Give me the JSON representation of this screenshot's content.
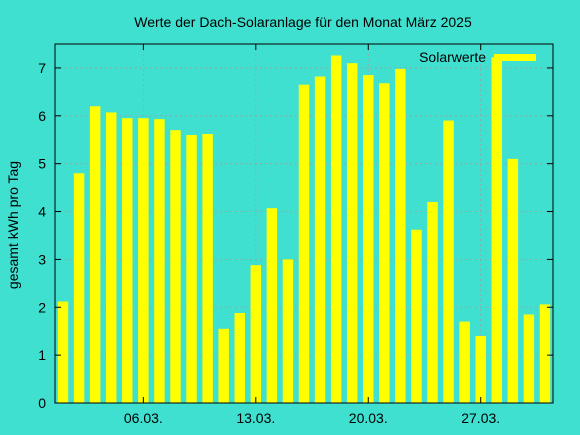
{
  "chart_data": {
    "type": "bar",
    "title": "Werte der Dach-Solaranlage für den Monat März 2025",
    "ylabel": "gesamt kWh pro Tag",
    "xlabel": "",
    "ylim": [
      0,
      7.5
    ],
    "yticks": [
      0,
      1,
      2,
      3,
      4,
      5,
      6,
      7
    ],
    "x_tick_labels": [
      {
        "day": 6,
        "label": "06.03."
      },
      {
        "day": 13,
        "label": "13.03."
      },
      {
        "day": 20,
        "label": "20.03."
      },
      {
        "day": 27,
        "label": "27.03."
      }
    ],
    "grid": true,
    "legend_position": "top-right",
    "series": [
      {
        "name": "Solarwerte",
        "color": "#ffff00",
        "days": [
          1,
          2,
          3,
          4,
          5,
          6,
          7,
          8,
          9,
          10,
          11,
          12,
          13,
          14,
          15,
          16,
          17,
          18,
          19,
          20,
          21,
          22,
          23,
          24,
          25,
          26,
          27,
          28,
          29,
          30,
          31
        ],
        "values": [
          2.12,
          4.8,
          6.2,
          6.07,
          5.95,
          5.95,
          5.93,
          5.7,
          5.6,
          5.62,
          1.55,
          1.88,
          2.88,
          4.07,
          3.0,
          6.65,
          6.82,
          7.26,
          7.1,
          6.85,
          6.68,
          6.98,
          3.62,
          4.2,
          5.9,
          1.7,
          1.4,
          7.22,
          5.1,
          1.85,
          2.06
        ]
      }
    ]
  }
}
